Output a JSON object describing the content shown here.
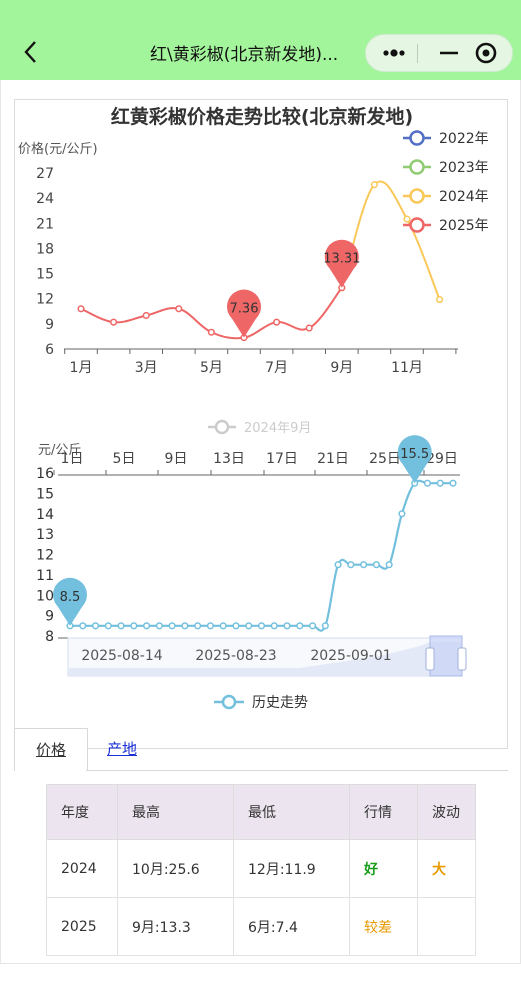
{
  "nav": {
    "title": "红\\黄彩椒(北京新发地)..."
  },
  "chart1": {
    "title": "红黄彩椒价格走势比较(北京新发地)",
    "ylabel": "价格(元/公斤)",
    "y_ticks": [
      "27",
      "24",
      "21",
      "18",
      "15",
      "12",
      "9",
      "6"
    ],
    "x_ticks": [
      "1月",
      "3月",
      "5月",
      "7月",
      "9月",
      "11月"
    ],
    "legend": [
      "2022年",
      "2023年",
      "2024年",
      "2025年"
    ],
    "pins": [
      "7.36",
      "13.31"
    ]
  },
  "chart2": {
    "legend": "2024年9月",
    "ylabel": "元/公斤",
    "y_ticks": [
      "16",
      "15",
      "14",
      "13",
      "12",
      "11",
      "10",
      "9",
      "8"
    ],
    "x_ticks_top": [
      "1日",
      "5日",
      "9日",
      "13日",
      "17日",
      "21日",
      "25日",
      "29日"
    ],
    "x_ticks_bottom": [
      "2025-08-14",
      "2025-08-23",
      "2025-09-01"
    ],
    "series_legend": "历史走势",
    "pins": [
      "8.5",
      "15.5"
    ]
  },
  "chart_data": [
    {
      "type": "line",
      "title": "红黄彩椒价格走势比较(北京新发地)",
      "ylabel": "价格(元/公斤)",
      "ylim": [
        6,
        27
      ],
      "legend_position": "top-right",
      "series": [
        {
          "name": "2022年",
          "color": "#5470c6",
          "x": [],
          "values": []
        },
        {
          "name": "2023年",
          "color": "#91cc75",
          "x": [],
          "values": []
        },
        {
          "name": "2024年",
          "color": "#fac858",
          "x": [
            9,
            10,
            11,
            12
          ],
          "values": [
            13.3,
            25.6,
            21.5,
            11.9
          ]
        },
        {
          "name": "2025年",
          "color": "#ee6666",
          "x": [
            1,
            2,
            3,
            4,
            5,
            6,
            7,
            8,
            9
          ],
          "values": [
            10.8,
            9.2,
            10.0,
            10.8,
            8.0,
            7.36,
            9.2,
            8.5,
            13.31
          ]
        }
      ]
    },
    {
      "type": "line",
      "ylabel": "元/公斤",
      "ylim": [
        8,
        16
      ],
      "legend_position": "bottom",
      "series": [
        {
          "name": "历史走势",
          "color": "#73c0de",
          "values": [
            8.5,
            8.5,
            8.5,
            8.5,
            8.5,
            8.5,
            8.5,
            8.5,
            8.5,
            8.5,
            8.5,
            8.5,
            8.5,
            8.5,
            8.5,
            8.5,
            8.5,
            8.5,
            8.5,
            8.5,
            8.5,
            11.5,
            11.5,
            11.5,
            11.5,
            11.5,
            14.0,
            15.5,
            15.5,
            15.5,
            15.5
          ]
        }
      ]
    }
  ],
  "tabs": {
    "price": "价格",
    "origin": "产地"
  },
  "table": {
    "headers": [
      "年度",
      "最高",
      "最低",
      "行情",
      "波动"
    ],
    "rows": [
      [
        "2024",
        "10月:25.6",
        "12月:11.9",
        "好",
        "大"
      ],
      [
        "2025",
        "9月:13.3",
        "6月:7.4",
        "较差",
        ""
      ]
    ]
  }
}
